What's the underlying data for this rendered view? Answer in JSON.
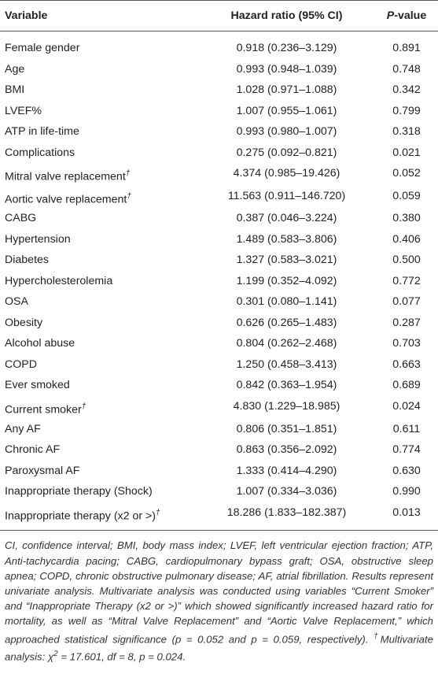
{
  "table": {
    "header": {
      "variable": "Variable",
      "hazard_ratio": "Hazard ratio (95% CI)",
      "p_symbol": "P",
      "p_rest": "-value"
    },
    "rows": [
      {
        "variable": "Female gender",
        "hazard_ratio": "0.918 (0.236–3.129)",
        "p_value": "0.891"
      },
      {
        "variable": "Age",
        "hazard_ratio": "0.993 (0.948–1.039)",
        "p_value": "0.748"
      },
      {
        "variable": "BMI",
        "hazard_ratio": "1.028 (0.971–1.088)",
        "p_value": "0.342"
      },
      {
        "variable": "LVEF%",
        "hazard_ratio": "1.007 (0.955–1.061)",
        "p_value": "0.799"
      },
      {
        "variable": "ATP in life-time",
        "hazard_ratio": "0.993 (0.980–1.007)",
        "p_value": "0.318"
      },
      {
        "variable": "Complications",
        "hazard_ratio": "0.275 (0.092–0.821)",
        "p_value": "0.021"
      },
      {
        "variable": "Mitral valve replacement",
        "note": "†",
        "hazard_ratio": "4.374 (0.985–19.426)",
        "p_value": "0.052"
      },
      {
        "variable": "Aortic valve replacement",
        "note": "†",
        "hazard_ratio": "11.563 (0.911–146.720)",
        "p_value": "0.059"
      },
      {
        "variable": "CABG",
        "hazard_ratio": "0.387 (0.046–3.224)",
        "p_value": "0.380"
      },
      {
        "variable": "Hypertension",
        "hazard_ratio": "1.489 (0.583–3.806)",
        "p_value": "0.406"
      },
      {
        "variable": "Diabetes",
        "hazard_ratio": "1.327 (0.583–3.021)",
        "p_value": "0.500"
      },
      {
        "variable": "Hypercholesterolemia",
        "hazard_ratio": "1.199 (0.352–4.092)",
        "p_value": "0.772"
      },
      {
        "variable": "OSA",
        "hazard_ratio": "0.301 (0.080–1.141)",
        "p_value": "0.077"
      },
      {
        "variable": "Obesity",
        "hazard_ratio": "0.626 (0.265–1.483)",
        "p_value": "0.287"
      },
      {
        "variable": "Alcohol abuse",
        "hazard_ratio": "0.804 (0.262–2.468)",
        "p_value": "0.703"
      },
      {
        "variable": "COPD",
        "hazard_ratio": "1.250 (0.458–3.413)",
        "p_value": "0.663"
      },
      {
        "variable": "Ever smoked",
        "hazard_ratio": "0.842 (0.363–1.954)",
        "p_value": "0.689"
      },
      {
        "variable": "Current smoker",
        "note": "†",
        "hazard_ratio": "4.830 (1.229–18.985)",
        "p_value": "0.024"
      },
      {
        "variable": "Any AF",
        "hazard_ratio": "0.806 (0.351–1.851)",
        "p_value": "0.611"
      },
      {
        "variable": "Chronic AF",
        "hazard_ratio": "0.863 (0.356–2.092)",
        "p_value": "0.774"
      },
      {
        "variable": "Paroxysmal AF",
        "hazard_ratio": "1.333 (0.414–4.290)",
        "p_value": "0.630"
      },
      {
        "variable": "Inappropriate therapy (Shock)",
        "hazard_ratio": "1.007 (0.334–3.036)",
        "p_value": "0.990"
      },
      {
        "variable": "Inappropriate therapy (x2 or >)",
        "note": "†",
        "hazard_ratio": "18.286 (1.833–182.387)",
        "p_value": "0.013"
      }
    ],
    "footnote": {
      "text": "CI, confidence interval; BMI, body mass index; LVEF, left ventricular ejection fraction; ATP, Anti-tachycardia pacing; CABG, cardiopulmonary bypass graft; OSA, obstructive sleep apnea; COPD, chronic obstructive pulmonary disease; AF, atrial fibrillation. Results represent univariate analysis. Multivariate analysis was conducted using variables “Current Smoker” and “Inappropriate Therapy (x2 or >)” which showed significantly increased hazard ratio for mortality, as well as “Mitral Valve Replacement” and “Aortic Valve Replacement,” which approached statistical significance (p = 0.052 and p = 0.059, respectively). ",
      "dagger": "†",
      "multivariate": "Multivariate analysis: χ",
      "exponent": "2",
      "stats": " = 17.601, df = 8, p = 0.024."
    }
  }
}
